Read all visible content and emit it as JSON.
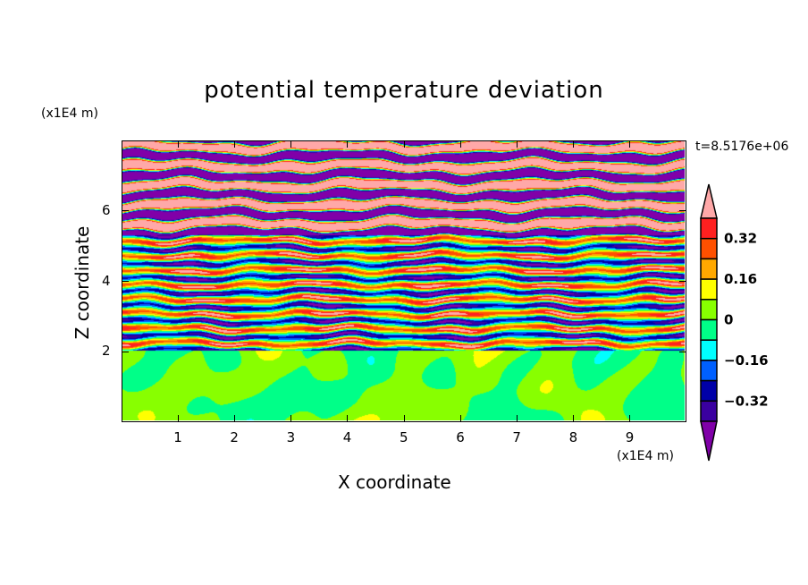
{
  "chart_data": {
    "type": "heatmap",
    "subtype": "filled-contour",
    "title": "potential temperature deviation",
    "xlabel": "X coordinate",
    "ylabel": "Z coordinate",
    "x_unit": "(x1E4 m)",
    "y_unit": "(x1E4 m)",
    "time_label": "t=8.5176e+06",
    "xlim": [
      0,
      10
    ],
    "ylim": [
      0,
      8
    ],
    "x_ticks": [
      1,
      2,
      3,
      4,
      5,
      6,
      7,
      8,
      9
    ],
    "y_ticks": [
      2,
      4,
      6
    ],
    "colorbar": {
      "levels": [
        -0.4,
        -0.32,
        -0.24,
        -0.16,
        -0.08,
        0,
        0.08,
        0.16,
        0.24,
        0.32,
        0.4
      ],
      "tick_labels": [
        {
          "value": 0.32,
          "label": "0.32"
        },
        {
          "value": 0.16,
          "label": "0.16"
        },
        {
          "value": 0,
          "label": "0"
        },
        {
          "value": -0.16,
          "label": "−0.16"
        },
        {
          "value": -0.32,
          "label": "−0.32"
        }
      ],
      "colors_low_to_high": [
        "#8000a8",
        "#3a00a0",
        "#0000a8",
        "#0060ff",
        "#00ffff",
        "#00ff88",
        "#88ff00",
        "#ffff00",
        "#ffa800",
        "#ff5000",
        "#ff2020",
        "#ffa8a8"
      ],
      "extend": "both"
    },
    "description_regions": [
      {
        "z_range": [
          0,
          2
        ],
        "values": "near zero, between -0.08 and 0.08"
      },
      {
        "z_range": [
          2,
          5.5
        ],
        "values": "layered, -0.4 to 0.4"
      },
      {
        "z_range": [
          5.5,
          8
        ],
        "values": "alternating bands beyond -0.4 and 0.4"
      }
    ]
  }
}
